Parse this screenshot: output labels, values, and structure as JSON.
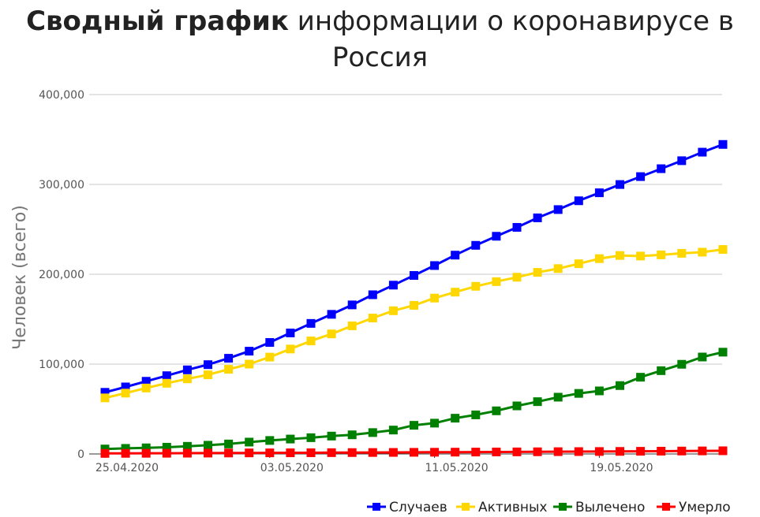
{
  "title": {
    "bold": "Сводный график",
    "rest": "информации о коронавирусе в",
    "line2": "Россия"
  },
  "chart_data": {
    "type": "line",
    "ylabel": "Человек (всего)",
    "ylim": [
      0,
      400000
    ],
    "yticks": [
      "0",
      "100,000",
      "200,000",
      "300,000",
      "400,000"
    ],
    "xtick_labels": [
      {
        "index": 0,
        "label": "25.04.2020"
      },
      {
        "index": 8,
        "label": "03.05.2020"
      },
      {
        "index": 16,
        "label": "11.05.2020"
      },
      {
        "index": 24,
        "label": "19.05.2020"
      }
    ],
    "x": [
      "25.04.2020",
      "26.04.2020",
      "27.04.2020",
      "28.04.2020",
      "29.04.2020",
      "30.04.2020",
      "01.05.2020",
      "02.05.2020",
      "03.05.2020",
      "04.05.2020",
      "05.05.2020",
      "06.05.2020",
      "07.05.2020",
      "08.05.2020",
      "09.05.2020",
      "10.05.2020",
      "11.05.2020",
      "12.05.2020",
      "13.05.2020",
      "14.05.2020",
      "15.05.2020",
      "16.05.2020",
      "17.05.2020",
      "18.05.2020",
      "19.05.2020",
      "20.05.2020",
      "21.05.2020",
      "22.05.2020",
      "23.05.2020",
      "24.05.2020",
      "25.05.2020"
    ],
    "grid": true,
    "legend_position": "bottom-right",
    "series": [
      {
        "name": "Случаев",
        "color": "#0000ff",
        "values": [
          68600,
          74600,
          80900,
          87100,
          93600,
          99400,
          106500,
          114400,
          124100,
          134700,
          145300,
          155400,
          165900,
          177200,
          187900,
          198700,
          209700,
          221300,
          232200,
          242300,
          252200,
          262800,
          272000,
          281800,
          290700,
          299900,
          308700,
          317500,
          326400,
          335900,
          344500
        ]
      },
      {
        "name": "Активных",
        "color": "#ffd700",
        "values": [
          62400,
          67700,
          73400,
          78700,
          83600,
          88100,
          94200,
          100000,
          107800,
          116800,
          125800,
          133600,
          142600,
          151300,
          159400,
          165400,
          173500,
          180100,
          186600,
          191800,
          196700,
          202100,
          206300,
          211700,
          217400,
          220900,
          220300,
          221600,
          223300,
          224600,
          227600
        ]
      },
      {
        "name": "Вылечено",
        "color": "#008000",
        "values": [
          5500,
          6200,
          6800,
          7500,
          8500,
          9700,
          11100,
          13200,
          15000,
          16600,
          18100,
          19900,
          21300,
          23800,
          26600,
          31900,
          34300,
          39800,
          43500,
          48000,
          53500,
          58200,
          63200,
          67400,
          70200,
          76100,
          85400,
          92700,
          99800,
          107900,
          113300
        ]
      },
      {
        "name": "Умерло",
        "color": "#ff0000",
        "values": [
          615,
          681,
          747,
          794,
          867,
          972,
          1073,
          1169,
          1222,
          1280,
          1356,
          1451,
          1537,
          1625,
          1723,
          1827,
          1915,
          2009,
          2116,
          2212,
          2305,
          2418,
          2537,
          2631,
          2722,
          2837,
          2972,
          3099,
          3249,
          3388,
          3541
        ]
      }
    ]
  }
}
